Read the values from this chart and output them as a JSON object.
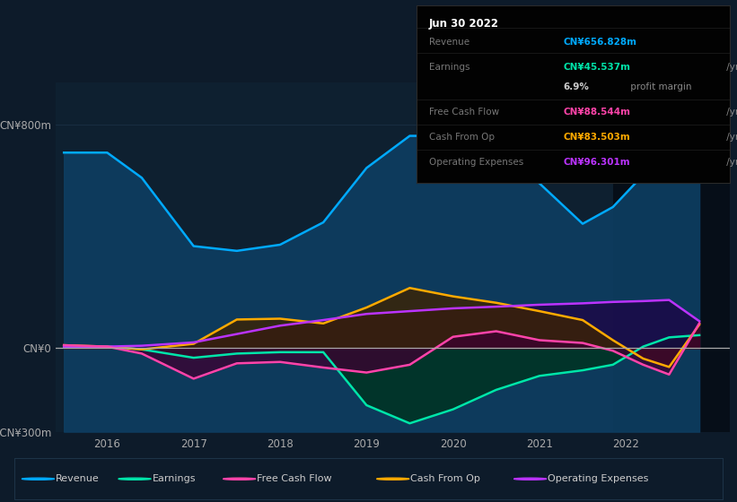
{
  "background_color": "#0d1b2a",
  "plot_bg_color": "#0e2030",
  "grid_color": "#1a3045",
  "zero_line_color": "#aaaaaa",
  "ylim": [
    -300,
    950
  ],
  "yticks_val": [
    -300,
    0,
    800
  ],
  "ytick_labels": [
    "-CN¥300m",
    "CN¥0",
    "CN¥800m"
  ],
  "xlim": [
    2015.4,
    2023.2
  ],
  "shade_start_x": 2021.85,
  "shade_color": "#060e18",
  "x_year_ticks": [
    2016,
    2017,
    2018,
    2019,
    2020,
    2021,
    2022
  ],
  "revenue_x": [
    2015.5,
    2016.0,
    2016.4,
    2017.0,
    2017.5,
    2018.0,
    2018.5,
    2019.0,
    2019.5,
    2020.0,
    2020.5,
    2021.0,
    2021.5,
    2021.85,
    2022.2,
    2022.5,
    2022.85
  ],
  "revenue_y": [
    700,
    700,
    610,
    365,
    348,
    370,
    450,
    645,
    760,
    760,
    700,
    590,
    445,
    505,
    620,
    690,
    657
  ],
  "revenue_color": "#00aaff",
  "revenue_fill": "#0d3d60",
  "earnings_x": [
    2015.5,
    2016.0,
    2016.4,
    2017.0,
    2017.5,
    2018.0,
    2018.5,
    2019.0,
    2019.5,
    2020.0,
    2020.5,
    2021.0,
    2021.5,
    2021.85,
    2022.2,
    2022.5,
    2022.85
  ],
  "earnings_y": [
    5,
    5,
    -5,
    -35,
    -20,
    -15,
    -15,
    -205,
    -270,
    -220,
    -150,
    -100,
    -80,
    -60,
    5,
    38,
    46
  ],
  "earnings_color": "#00e5aa",
  "earnings_fill": "#003322",
  "fcf_x": [
    2015.5,
    2016.0,
    2016.4,
    2017.0,
    2017.5,
    2018.0,
    2018.5,
    2019.0,
    2019.5,
    2020.0,
    2020.5,
    2021.0,
    2021.5,
    2021.85,
    2022.2,
    2022.5,
    2022.85
  ],
  "fcf_y": [
    10,
    5,
    -20,
    -110,
    -55,
    -50,
    -70,
    -88,
    -60,
    40,
    60,
    28,
    18,
    -10,
    -60,
    -95,
    89
  ],
  "fcf_color": "#ff44aa",
  "fcf_fill": "#3d0030",
  "cfop_x": [
    2015.5,
    2016.0,
    2016.4,
    2017.0,
    2017.5,
    2018.0,
    2018.5,
    2019.0,
    2019.5,
    2020.0,
    2020.5,
    2021.0,
    2021.5,
    2021.85,
    2022.2,
    2022.5,
    2022.85
  ],
  "cfop_y": [
    10,
    5,
    -5,
    15,
    102,
    105,
    88,
    145,
    215,
    185,
    162,
    132,
    100,
    28,
    -38,
    -68,
    84
  ],
  "cfop_color": "#ffaa00",
  "cfop_fill": "#3d2200",
  "opex_x": [
    2015.5,
    2016.0,
    2016.4,
    2017.0,
    2017.5,
    2018.0,
    2018.5,
    2019.0,
    2019.5,
    2020.0,
    2020.5,
    2021.0,
    2021.5,
    2021.85,
    2022.2,
    2022.5,
    2022.85
  ],
  "opex_y": [
    5,
    5,
    8,
    20,
    50,
    80,
    100,
    122,
    132,
    142,
    148,
    155,
    160,
    165,
    168,
    172,
    96
  ],
  "opex_color": "#bb33ff",
  "opex_fill": "#1e0044",
  "legend": [
    {
      "label": "Revenue",
      "color": "#00aaff"
    },
    {
      "label": "Earnings",
      "color": "#00e5aa"
    },
    {
      "label": "Free Cash Flow",
      "color": "#ff44aa"
    },
    {
      "label": "Cash From Op",
      "color": "#ffaa00"
    },
    {
      "label": "Operating Expenses",
      "color": "#bb33ff"
    }
  ],
  "info_box_date": "Jun 30 2022",
  "info_box_rows": [
    {
      "label": "Revenue",
      "value": "CN¥656.828m",
      "unit": "/yr",
      "color": "#00aaff"
    },
    {
      "label": "Earnings",
      "value": "CN¥45.537m",
      "unit": "/yr",
      "color": "#00e5aa"
    },
    {
      "label": "",
      "value": "6.9%",
      "unit": "profit margin",
      "color": "#cccccc"
    },
    {
      "label": "Free Cash Flow",
      "value": "CN¥88.544m",
      "unit": "/yr",
      "color": "#ff44aa"
    },
    {
      "label": "Cash From Op",
      "value": "CN¥83.503m",
      "unit": "/yr",
      "color": "#ffaa00"
    },
    {
      "label": "Operating Expenses",
      "value": "CN¥96.301m",
      "unit": "/yr",
      "color": "#bb33ff"
    }
  ]
}
